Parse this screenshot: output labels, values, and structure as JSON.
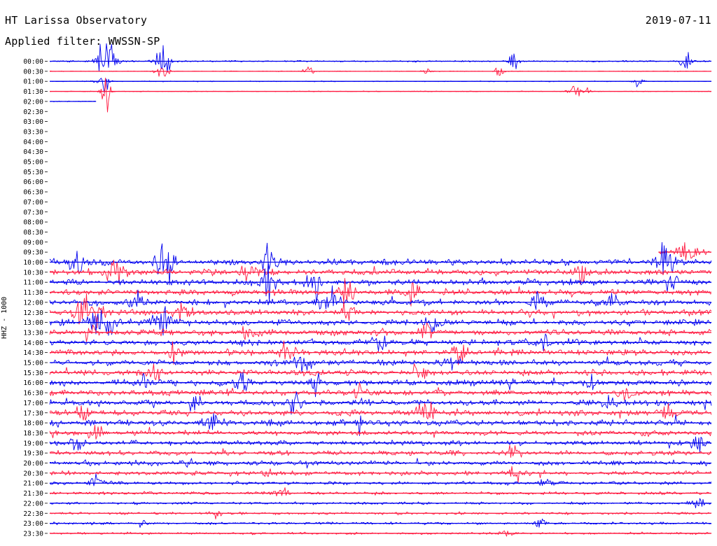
{
  "header": {
    "title": "HT Larissa Observatory",
    "filter_text": "Applied filter: WWSSN-SP",
    "date": "2019-07-11"
  },
  "colors": {
    "blue": "#0000ee",
    "red": "#ff1a40",
    "background": "#ffffff",
    "text": "#000000"
  },
  "chart_data": {
    "type": "line",
    "title": "HT Larissa Observatory",
    "subtitle": "Applied filter: WWSSN-SP",
    "date": "2019-07-11",
    "ylabel": "HHZ - 1000",
    "xlabel": "",
    "line_colors_alternating": [
      "blue",
      "red"
    ],
    "y_tick_labels": [
      "00:00",
      "00:30",
      "01:00",
      "01:30",
      "02:00",
      "02:30",
      "03:00",
      "03:30",
      "04:00",
      "04:30",
      "05:00",
      "05:30",
      "06:00",
      "06:30",
      "07:00",
      "07:30",
      "08:00",
      "08:30",
      "09:00",
      "09:30",
      "10:00",
      "10:30",
      "11:00",
      "11:30",
      "12:00",
      "12:30",
      "13:00",
      "13:30",
      "14:00",
      "14:30",
      "15:00",
      "15:30",
      "16:00",
      "16:30",
      "17:00",
      "17:30",
      "18:00",
      "18:30",
      "19:00",
      "19:30",
      "20:00",
      "20:30",
      "21:00",
      "21:30",
      "22:00",
      "22:30",
      "23:00",
      "23:30"
    ],
    "rows": [
      {
        "time": "00:00",
        "coverage": [
          0,
          1
        ],
        "noise": 0.18,
        "events": [
          [
            0.085,
            10,
            0.012
          ],
          [
            0.17,
            6,
            0.01
          ],
          [
            0.7,
            3,
            0.008
          ],
          [
            0.96,
            4,
            0.008
          ]
        ]
      },
      {
        "time": "00:30",
        "coverage": [
          0,
          1
        ],
        "noise": 0.08,
        "events": [
          [
            0.17,
            2,
            0.01
          ],
          [
            0.39,
            1.5,
            0.008
          ],
          [
            0.57,
            1.5,
            0.006
          ],
          [
            0.68,
            3,
            0.006
          ]
        ]
      },
      {
        "time": "01:00",
        "coverage": [
          0,
          1
        ],
        "noise": 0.1,
        "events": [
          [
            0.08,
            6,
            0.008
          ],
          [
            0.89,
            2,
            0.008
          ]
        ]
      },
      {
        "time": "01:30",
        "coverage": [
          0,
          1
        ],
        "noise": 0.08,
        "events": [
          [
            0.085,
            8,
            0.006
          ],
          [
            0.8,
            2,
            0.015
          ]
        ]
      },
      {
        "time": "02:00",
        "coverage": [
          0,
          0.07
        ],
        "noise": 0.1,
        "events": []
      },
      {
        "time": "02:30",
        "coverage": [
          0,
          0
        ],
        "noise": 0,
        "events": []
      },
      {
        "time": "03:00",
        "coverage": [
          0,
          0
        ],
        "noise": 0,
        "events": []
      },
      {
        "time": "03:30",
        "coverage": [
          0,
          0
        ],
        "noise": 0,
        "events": []
      },
      {
        "time": "04:00",
        "coverage": [
          0,
          0
        ],
        "noise": 0,
        "events": []
      },
      {
        "time": "04:30",
        "coverage": [
          0,
          0
        ],
        "noise": 0,
        "events": []
      },
      {
        "time": "05:00",
        "coverage": [
          0,
          0
        ],
        "noise": 0,
        "events": []
      },
      {
        "time": "05:30",
        "coverage": [
          0,
          0
        ],
        "noise": 0,
        "events": []
      },
      {
        "time": "06:00",
        "coverage": [
          0,
          0
        ],
        "noise": 0,
        "events": []
      },
      {
        "time": "06:30",
        "coverage": [
          0,
          0
        ],
        "noise": 0,
        "events": []
      },
      {
        "time": "07:00",
        "coverage": [
          0,
          0
        ],
        "noise": 0,
        "events": []
      },
      {
        "time": "07:30",
        "coverage": [
          0,
          0
        ],
        "noise": 0,
        "events": []
      },
      {
        "time": "08:00",
        "coverage": [
          0,
          0
        ],
        "noise": 0,
        "events": []
      },
      {
        "time": "08:30",
        "coverage": [
          0,
          0
        ],
        "noise": 0,
        "events": []
      },
      {
        "time": "09:00",
        "coverage": [
          0,
          0
        ],
        "noise": 0,
        "events": []
      },
      {
        "time": "09:30",
        "coverage": [
          0.92,
          1
        ],
        "noise": 0.35,
        "events": [
          [
            0.96,
            3,
            0.02
          ]
        ]
      },
      {
        "time": "10:00",
        "coverage": [
          0,
          1
        ],
        "noise": 0.7,
        "events": [
          [
            0.04,
            4,
            0.01
          ],
          [
            0.17,
            4,
            0.01
          ],
          [
            0.18,
            5,
            0.01
          ],
          [
            0.33,
            4,
            0.01
          ],
          [
            0.93,
            4,
            0.015
          ]
        ]
      },
      {
        "time": "10:30",
        "coverage": [
          0,
          1
        ],
        "noise": 0.7,
        "events": [
          [
            0.1,
            4,
            0.015
          ],
          [
            0.3,
            3,
            0.012
          ],
          [
            0.8,
            3,
            0.01
          ]
        ]
      },
      {
        "time": "11:00",
        "coverage": [
          0,
          1
        ],
        "noise": 0.7,
        "events": [
          [
            0.33,
            5,
            0.01
          ],
          [
            0.4,
            4,
            0.01
          ],
          [
            0.94,
            4,
            0.01
          ]
        ]
      },
      {
        "time": "11:30",
        "coverage": [
          0,
          1
        ],
        "noise": 0.7,
        "events": [
          [
            0.45,
            4,
            0.01
          ],
          [
            0.55,
            3,
            0.01
          ]
        ]
      },
      {
        "time": "12:00",
        "coverage": [
          0,
          1
        ],
        "noise": 0.7,
        "events": [
          [
            0.13,
            3,
            0.01
          ],
          [
            0.42,
            4,
            0.015
          ],
          [
            0.74,
            3,
            0.01
          ],
          [
            0.85,
            3,
            0.01
          ]
        ]
      },
      {
        "time": "12:30",
        "coverage": [
          0,
          1
        ],
        "noise": 0.7,
        "events": [
          [
            0.06,
            4,
            0.02
          ],
          [
            0.2,
            3,
            0.01
          ],
          [
            0.45,
            3,
            0.01
          ]
        ]
      },
      {
        "time": "13:00",
        "coverage": [
          0,
          1
        ],
        "noise": 0.7,
        "events": [
          [
            0.08,
            3,
            0.02
          ],
          [
            0.17,
            4,
            0.02
          ],
          [
            0.58,
            3,
            0.01
          ]
        ]
      },
      {
        "time": "13:30",
        "coverage": [
          0,
          1
        ],
        "noise": 0.7,
        "events": [
          [
            0.06,
            2.5,
            0.01
          ],
          [
            0.3,
            2.5,
            0.01
          ],
          [
            0.57,
            2.5,
            0.01
          ]
        ]
      },
      {
        "time": "14:00",
        "coverage": [
          0,
          1
        ],
        "noise": 0.7,
        "events": [
          [
            0.5,
            2.5,
            0.01
          ],
          [
            0.75,
            2,
            0.01
          ]
        ]
      },
      {
        "time": "14:30",
        "coverage": [
          0,
          1
        ],
        "noise": 0.7,
        "events": [
          [
            0.19,
            2.5,
            0.01
          ],
          [
            0.36,
            2.5,
            0.01
          ],
          [
            0.62,
            2,
            0.01
          ]
        ]
      },
      {
        "time": "15:00",
        "coverage": [
          0,
          1
        ],
        "noise": 0.7,
        "events": [
          [
            0.38,
            3,
            0.01
          ],
          [
            0.61,
            2,
            0.01
          ]
        ]
      },
      {
        "time": "15:30",
        "coverage": [
          0,
          1
        ],
        "noise": 0.7,
        "events": [
          [
            0.16,
            2,
            0.01
          ],
          [
            0.56,
            2,
            0.01
          ]
        ]
      },
      {
        "time": "16:00",
        "coverage": [
          0,
          1
        ],
        "noise": 0.7,
        "events": [
          [
            0.14,
            2,
            0.01
          ],
          [
            0.29,
            2.5,
            0.01
          ],
          [
            0.4,
            2.5,
            0.01
          ],
          [
            0.82,
            2,
            0.01
          ]
        ]
      },
      {
        "time": "16:30",
        "coverage": [
          0,
          1
        ],
        "noise": 0.7,
        "events": [
          [
            0.47,
            2,
            0.01
          ],
          [
            0.87,
            2,
            0.01
          ]
        ]
      },
      {
        "time": "17:00",
        "coverage": [
          0,
          1
        ],
        "noise": 0.7,
        "events": [
          [
            0.22,
            2.5,
            0.01
          ],
          [
            0.37,
            2.5,
            0.01
          ],
          [
            0.85,
            2,
            0.01
          ]
        ]
      },
      {
        "time": "17:30",
        "coverage": [
          0,
          1
        ],
        "noise": 0.7,
        "events": [
          [
            0.05,
            2.5,
            0.01
          ],
          [
            0.57,
            2.5,
            0.015
          ],
          [
            0.93,
            2,
            0.01
          ]
        ]
      },
      {
        "time": "18:00",
        "coverage": [
          0,
          1
        ],
        "noise": 0.7,
        "events": [
          [
            0.24,
            3,
            0.012
          ],
          [
            0.47,
            2.5,
            0.01
          ]
        ]
      },
      {
        "time": "18:30",
        "coverage": [
          0,
          1
        ],
        "noise": 0.6,
        "events": [
          [
            0.07,
            2,
            0.01
          ],
          [
            0.9,
            2,
            0.01
          ]
        ]
      },
      {
        "time": "19:00",
        "coverage": [
          0,
          1
        ],
        "noise": 0.6,
        "events": [
          [
            0.04,
            2,
            0.01
          ],
          [
            0.98,
            2.5,
            0.01
          ]
        ]
      },
      {
        "time": "19:30",
        "coverage": [
          0,
          1
        ],
        "noise": 0.55,
        "events": [
          [
            0.7,
            1.5,
            0.01
          ]
        ]
      },
      {
        "time": "20:00",
        "coverage": [
          0,
          1
        ],
        "noise": 0.55,
        "events": [
          [
            0.21,
            2,
            0.01
          ]
        ]
      },
      {
        "time": "20:30",
        "coverage": [
          0,
          1
        ],
        "noise": 0.5,
        "events": [
          [
            0.33,
            1.5,
            0.01
          ],
          [
            0.7,
            1.5,
            0.01
          ]
        ]
      },
      {
        "time": "21:00",
        "coverage": [
          0,
          1
        ],
        "noise": 0.4,
        "events": [
          [
            0.07,
            1.8,
            0.01
          ],
          [
            0.75,
            1.5,
            0.01
          ]
        ]
      },
      {
        "time": "21:30",
        "coverage": [
          0,
          1
        ],
        "noise": 0.35,
        "events": [
          [
            0.35,
            1.5,
            0.01
          ]
        ]
      },
      {
        "time": "22:00",
        "coverage": [
          0,
          1
        ],
        "noise": 0.3,
        "events": [
          [
            0.98,
            2,
            0.01
          ]
        ]
      },
      {
        "time": "22:30",
        "coverage": [
          0,
          1
        ],
        "noise": 0.3,
        "events": [
          [
            0.25,
            1.2,
            0.008
          ]
        ]
      },
      {
        "time": "23:00",
        "coverage": [
          0,
          1
        ],
        "noise": 0.3,
        "events": [
          [
            0.14,
            1.5,
            0.006
          ],
          [
            0.74,
            2.5,
            0.006
          ]
        ]
      },
      {
        "time": "23:30",
        "coverage": [
          0,
          1
        ],
        "noise": 0.25,
        "events": [
          [
            0.69,
            1.2,
            0.008
          ]
        ]
      }
    ]
  }
}
